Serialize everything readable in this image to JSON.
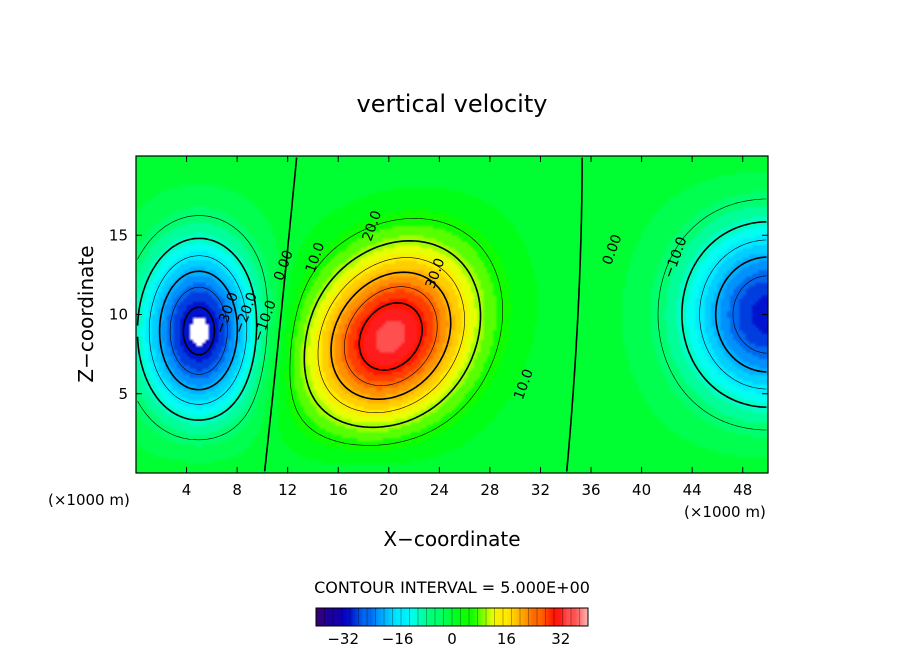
{
  "chart_data": {
    "type": "heatmap",
    "title": "vertical velocity",
    "xlabel": "X−coordinate",
    "ylabel": "Z−coordinate",
    "x_unit_left": "(×1000 m)",
    "x_unit_right": "(×1000 m)",
    "xlim": [
      0,
      50
    ],
    "ylim": [
      0,
      20
    ],
    "x_ticks": [
      4,
      8,
      12,
      16,
      20,
      24,
      28,
      32,
      36,
      40,
      44,
      48
    ],
    "x_tick_labels": [
      "4",
      "8",
      "12",
      "16",
      "20",
      "24",
      "28",
      "32",
      "36",
      "40",
      "44",
      "48"
    ],
    "y_ticks": [
      5,
      10,
      15
    ],
    "y_tick_labels": [
      "5",
      "10",
      "15"
    ],
    "field_features": [
      {
        "name": "downdraft-left",
        "x": 5,
        "z": 8.5,
        "value": -33
      },
      {
        "name": "updraft-center",
        "x": 20,
        "z": 8,
        "value": 36
      },
      {
        "name": "downdraft-right",
        "x": 50,
        "z": 10,
        "value": -30
      }
    ],
    "contour_labels": [
      {
        "text": "−30.0",
        "x": 7.5,
        "z": 10
      },
      {
        "text": "−20.0",
        "x": 9,
        "z": 10
      },
      {
        "text": "−10.0",
        "x": 10.5,
        "z": 9.5
      },
      {
        "text": "0.00",
        "x": 12,
        "z": 13
      },
      {
        "text": "10.0",
        "x": 14.5,
        "z": 13.5
      },
      {
        "text": "20.0",
        "x": 19,
        "z": 15.5
      },
      {
        "text": "30.0",
        "x": 24,
        "z": 12.5
      },
      {
        "text": "10.0",
        "x": 31,
        "z": 5.5
      },
      {
        "text": "0.00",
        "x": 38,
        "z": 14
      },
      {
        "text": "−10.0",
        "x": 43,
        "z": 13.5
      }
    ],
    "contour_interval_label": "CONTOUR INTERVAL =  5.000E+00",
    "colorbar": {
      "range": [
        -40,
        40
      ],
      "ticks": [
        -32,
        -16,
        0,
        16,
        32
      ],
      "tick_labels": [
        "−32",
        "−16",
        "0",
        "16",
        "32"
      ],
      "colors": [
        "#3a006e",
        "#0000c8",
        "#0096ff",
        "#00ffff",
        "#00ff64",
        "#00ff00",
        "#ffff00",
        "#ff9600",
        "#ff0000",
        "#ffb4b4"
      ]
    }
  }
}
